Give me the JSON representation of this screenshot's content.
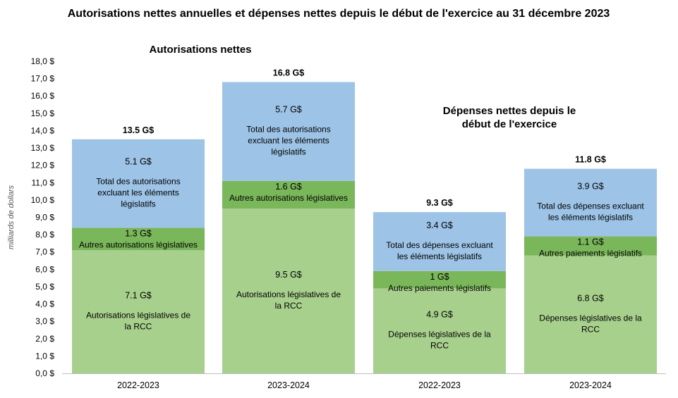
{
  "chart_data": {
    "type": "bar",
    "stacked": true,
    "title": "Autorisations nettes annuelles et dépenses nettes depuis le début de l'exercice au 31 décembre 2023",
    "ylabel": "milliards de dollars",
    "ylim": [
      0,
      18
    ],
    "yticks": [
      "0,0 $",
      "1,0 $",
      "2,0 $",
      "3,0 $",
      "4,0 $",
      "5,0 $",
      "6,0 $",
      "7,0 $",
      "8,0 $",
      "9,0 $",
      "10,0 $",
      "11,0 $",
      "12,0 $",
      "13,0 $",
      "14,0 $",
      "15,0 $",
      "16,0 $",
      "17,0 $",
      "18,0 $"
    ],
    "grid": false,
    "colors": {
      "dark_green": "#7ab65a",
      "light_green": "#a8d08d",
      "blue": "#9dc3e6"
    },
    "groups": [
      {
        "title_lines": [
          "Autorisations nettes"
        ],
        "bars": [
          {
            "category": "2022-2023",
            "total": 13.5,
            "total_label": "13.5 G$",
            "segments": [
              {
                "value": 7.1,
                "value_label": "7.1 G$",
                "label_lines": [
                  "Autorisations législatives de",
                  "la RCC"
                ],
                "color": "#a8d08d"
              },
              {
                "value": 1.3,
                "value_label": "1.3 G$",
                "label_lines": [
                  "Autres autorisations législatives"
                ],
                "color": "#7ab65a"
              },
              {
                "value": 5.1,
                "value_label": "5.1 G$",
                "label_lines": [
                  "Total des autorisations",
                  "excluant les éléments",
                  "législatifs"
                ],
                "color": "#9dc3e6"
              }
            ]
          },
          {
            "category": "2023-2024",
            "total": 16.8,
            "total_label": "16.8 G$",
            "segments": [
              {
                "value": 9.5,
                "value_label": "9.5 G$",
                "label_lines": [
                  "Autorisations législatives de",
                  "la RCC"
                ],
                "color": "#a8d08d"
              },
              {
                "value": 1.6,
                "value_label": "1.6 G$",
                "label_lines": [
                  "Autres autorisations législatives"
                ],
                "color": "#7ab65a"
              },
              {
                "value": 5.7,
                "value_label": "5.7 G$",
                "label_lines": [
                  "Total des autorisations",
                  "excluant les éléments",
                  "législatifs"
                ],
                "color": "#9dc3e6"
              }
            ]
          }
        ]
      },
      {
        "title_lines": [
          "Dépenses nettes depuis le",
          "début de l'exercice"
        ],
        "bars": [
          {
            "category": "2022-2023",
            "total": 9.3,
            "total_label": "9.3 G$",
            "segments": [
              {
                "value": 4.9,
                "value_label": "4.9 G$",
                "label_lines": [
                  "Dépenses législatives de la",
                  "RCC"
                ],
                "color": "#a8d08d"
              },
              {
                "value": 1.0,
                "value_label": "1 G$",
                "label_lines": [
                  "Autres paiements législatifs"
                ],
                "color": "#7ab65a"
              },
              {
                "value": 3.4,
                "value_label": "3.4 G$",
                "label_lines": [
                  "Total des dépenses excluant",
                  "les éléments législatifs"
                ],
                "color": "#9dc3e6"
              }
            ]
          },
          {
            "category": "2023-2024",
            "total": 11.8,
            "total_label": "11.8 G$",
            "segments": [
              {
                "value": 6.8,
                "value_label": "6.8 G$",
                "label_lines": [
                  "Dépenses législatives de la",
                  "RCC"
                ],
                "color": "#a8d08d"
              },
              {
                "value": 1.1,
                "value_label": "1.1 G$",
                "label_lines": [
                  "Autres paiements législatifs"
                ],
                "color": "#7ab65a"
              },
              {
                "value": 3.9,
                "value_label": "3.9 G$",
                "label_lines": [
                  "Total des dépenses excluant",
                  "les éléments législatifs"
                ],
                "color": "#9dc3e6"
              }
            ]
          }
        ]
      }
    ]
  }
}
